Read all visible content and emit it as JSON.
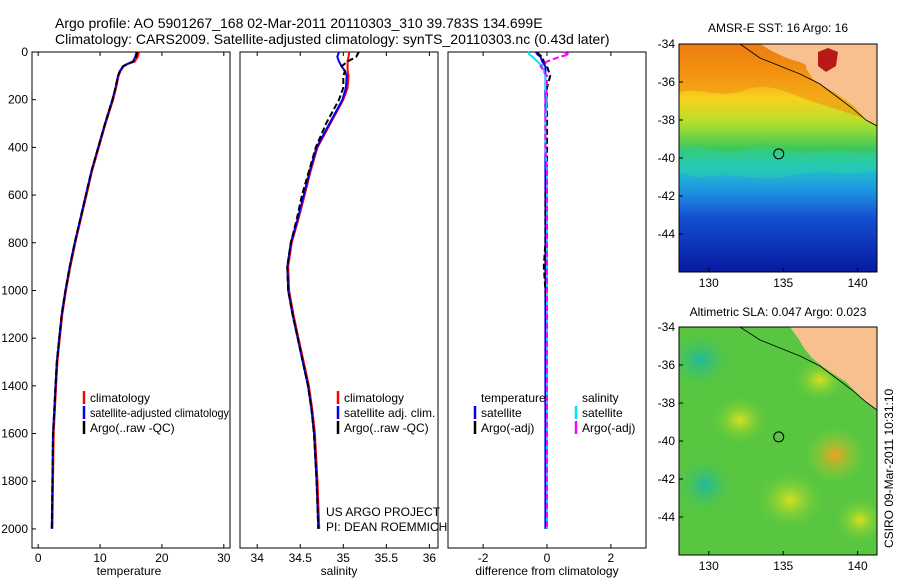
{
  "header": {
    "title_line1": "Argo profile: AO 5901267_168 02-Mar-2011 20110303_310 39.783S 134.699E",
    "title_line2": "Climatology: CARS2009. Satellite-adjusted climatology: synTS_20110303.nc (0.43d later)"
  },
  "colors": {
    "climatology": "#ff0000",
    "satellite": "#0000ff",
    "argo": "#000000",
    "salinity_satellite": "#00e5ff",
    "salinity_argo": "#ff00ff",
    "land": "#f7c08e"
  },
  "chart_data": [
    {
      "type": "line",
      "xlabel": "temperature",
      "ylabel": "",
      "xlim": [
        -1,
        31
      ],
      "ylim": [
        2080,
        0
      ],
      "xticks": [
        0,
        10,
        20,
        30
      ],
      "xtick_labels": [
        "0",
        "10",
        "20",
        "30"
      ],
      "yticks": [
        0,
        200,
        400,
        600,
        800,
        1000,
        1200,
        1400,
        1600,
        1800,
        2000
      ],
      "ytick_labels": [
        "0",
        "200",
        "400",
        "600",
        "800",
        "1000",
        "1200",
        "1400",
        "1600",
        "1800",
        "2000"
      ],
      "depth": [
        0,
        20,
        40,
        50,
        60,
        80,
        100,
        150,
        200,
        300,
        400,
        500,
        600,
        700,
        800,
        900,
        1000,
        1100,
        1200,
        1300,
        1400,
        1500,
        1600,
        1800,
        2000
      ],
      "series": [
        {
          "name": "climatology",
          "color": "#ff0000",
          "values": [
            16.3,
            16.1,
            15.6,
            14.5,
            13.8,
            13.3,
            13.0,
            12.6,
            12.1,
            10.9,
            9.8,
            8.7,
            7.8,
            6.9,
            6.0,
            5.2,
            4.5,
            3.9,
            3.5,
            3.1,
            2.9,
            2.7,
            2.5,
            2.4,
            2.3
          ]
        },
        {
          "name": "satellite-adjusted climatology",
          "color": "#0000ff",
          "values": [
            15.9,
            15.7,
            15.3,
            14.4,
            13.7,
            13.2,
            12.9,
            12.5,
            12.0,
            10.8,
            9.7,
            8.6,
            7.7,
            6.8,
            5.9,
            5.1,
            4.4,
            3.8,
            3.4,
            3.0,
            2.8,
            2.6,
            2.4,
            2.3,
            2.2
          ]
        },
        {
          "name": "Argo(..raw -QC)",
          "color": "#000000",
          "values": [
            16.0,
            15.8,
            15.4,
            14.4,
            13.7,
            13.2,
            12.9,
            12.5,
            12.0,
            10.8,
            9.7,
            8.6,
            7.7,
            6.8,
            5.9,
            5.1,
            4.4,
            3.8,
            3.4,
            3.0,
            2.8,
            2.6,
            2.4,
            2.3,
            2.2
          ]
        }
      ],
      "legend": [
        {
          "label": "climatology",
          "color": "#ff0000"
        },
        {
          "label": "satellite-adjusted climatology",
          "color": "#0000ff"
        },
        {
          "label": "Argo(..raw -QC)",
          "color": "#000000"
        }
      ]
    },
    {
      "type": "line",
      "xlabel": "salinity",
      "xlim": [
        33.8,
        36.1
      ],
      "ylim": [
        2080,
        0
      ],
      "xticks": [
        34,
        34.5,
        35,
        35.5,
        36
      ],
      "xtick_labels": [
        "34",
        "34.5",
        "35",
        "35.5",
        "36"
      ],
      "depth": [
        0,
        20,
        40,
        60,
        80,
        100,
        150,
        200,
        300,
        400,
        500,
        600,
        700,
        800,
        900,
        1000,
        1100,
        1200,
        1300,
        1400,
        1500,
        1600,
        1800,
        2000
      ],
      "series": [
        {
          "name": "climatology",
          "color": "#ff0000",
          "values": [
            35.07,
            35.06,
            35.05,
            35.05,
            35.05,
            35.06,
            35.05,
            35.0,
            34.85,
            34.7,
            34.62,
            34.55,
            34.48,
            34.4,
            34.36,
            34.37,
            34.42,
            34.48,
            34.54,
            34.6,
            34.64,
            34.67,
            34.7,
            34.72
          ]
        },
        {
          "name": "satellite adj. clim.",
          "color": "#0000ff",
          "values": [
            34.95,
            34.93,
            34.95,
            34.98,
            35.02,
            35.04,
            35.03,
            34.99,
            34.84,
            34.69,
            34.61,
            34.54,
            34.47,
            34.39,
            34.35,
            34.36,
            34.41,
            34.47,
            34.53,
            34.59,
            34.63,
            34.66,
            34.69,
            34.71
          ]
        },
        {
          "name": "Argo(..raw -QC)",
          "color": "#000000",
          "values": [
            35.18,
            35.15,
            35.05,
            34.98,
            35.02,
            35.0,
            35.0,
            34.95,
            34.8,
            34.68,
            34.6,
            34.52,
            34.46,
            34.39,
            34.35,
            34.36,
            34.41,
            34.47,
            34.53,
            34.59,
            34.63,
            34.66,
            34.69,
            34.71
          ]
        }
      ],
      "legend": [
        {
          "label": "climatology",
          "color": "#ff0000"
        },
        {
          "label": "satellite adj. clim.",
          "color": "#0000ff"
        },
        {
          "label": "Argo(..raw -QC)",
          "color": "#000000"
        }
      ],
      "credit_line1": "US ARGO PROJECT",
      "credit_line2": "PI: DEAN ROEMMICH"
    },
    {
      "type": "line",
      "xlabel": "difference from climatology",
      "xlim": [
        -3.1,
        3.1
      ],
      "ylim": [
        2080,
        0
      ],
      "xticks": [
        -2,
        0,
        2
      ],
      "xtick_labels": [
        "-2",
        "0",
        "2"
      ],
      "depth": [
        0,
        10,
        20,
        40,
        60,
        80,
        100,
        150,
        200,
        300,
        400,
        500,
        600,
        800,
        900,
        1000,
        1200,
        1400,
        1600,
        1800,
        2000
      ],
      "series": [
        {
          "name": "temperature satellite",
          "color": "#0000ff",
          "values": [
            -0.35,
            -0.3,
            -0.2,
            -0.15,
            -0.05,
            -0.05,
            -0.05,
            -0.05,
            -0.05,
            -0.05,
            -0.05,
            -0.05,
            -0.05,
            -0.05,
            -0.05,
            -0.05,
            -0.05,
            -0.05,
            -0.05,
            -0.05,
            -0.05
          ]
        },
        {
          "name": "temperature Argo(-adj)",
          "color": "#000000",
          "values": [
            -0.3,
            -0.25,
            -0.15,
            -0.1,
            0.0,
            0.05,
            0.1,
            0.0,
            0.0,
            0.0,
            0.0,
            0.0,
            -0.05,
            -0.05,
            -0.1,
            -0.05,
            0.0,
            0.0,
            0.0,
            0.0,
            0.0
          ]
        },
        {
          "name": "salinity satellite",
          "color": "#00e5ff",
          "values": [
            -0.6,
            -0.55,
            -0.45,
            -0.3,
            -0.15,
            -0.1,
            -0.05,
            -0.05,
            0.0,
            -0.05,
            -0.05,
            0.0,
            0.0,
            0.0,
            0.0,
            0.0,
            0.0,
            0.0,
            0.0,
            0.0,
            0.0
          ]
        },
        {
          "name": "salinity Argo(-adj)",
          "color": "#ff00ff",
          "values": [
            0.5,
            0.7,
            0.4,
            0.0,
            -0.2,
            -0.1,
            0.0,
            0.0,
            -0.05,
            -0.05,
            -0.05,
            0.0,
            0.0,
            0.0,
            0.0,
            0.0,
            0.0,
            0.0,
            0.0,
            0.0,
            0.0
          ]
        }
      ],
      "legend_temperature_title": "temperature",
      "legend_salinity_title": "salinity",
      "legend": [
        {
          "label": "satellite",
          "color": "#0000ff",
          "group": "temperature"
        },
        {
          "label": "Argo(-adj)",
          "color": "#000000",
          "group": "temperature"
        },
        {
          "label": "satellite",
          "color": "#00e5ff",
          "group": "salinity"
        },
        {
          "label": "Argo(-adj)",
          "color": "#ff00ff",
          "group": "salinity"
        }
      ]
    },
    {
      "type": "heatmap",
      "title": "AMSR-E SST: 16 Argo: 16",
      "xlim": [
        128,
        141.3
      ],
      "ylim": [
        -46,
        -34
      ],
      "xticks": [
        130,
        135,
        140
      ],
      "xtick_labels": [
        "130",
        "135",
        "140"
      ],
      "yticks": [
        -34,
        -36,
        -38,
        -40,
        -42,
        -44
      ],
      "ytick_labels": [
        "-34",
        "-36",
        "-38",
        "-40",
        "-42",
        "-44"
      ],
      "argo_position": [
        134.699,
        -39.783
      ]
    },
    {
      "type": "heatmap",
      "title": "Altimetric SLA: 0.047 Argo: 0.023",
      "xlim": [
        128,
        141.3
      ],
      "ylim": [
        -46,
        -34
      ],
      "xticks": [
        130,
        135,
        140
      ],
      "xtick_labels": [
        "130",
        "135",
        "140"
      ],
      "yticks": [
        -34,
        -36,
        -38,
        -40,
        -42,
        -44
      ],
      "ytick_labels": [
        "-34",
        "-36",
        "-38",
        "-40",
        "-42",
        "-44"
      ],
      "argo_position": [
        134.699,
        -39.783
      ]
    }
  ],
  "footer": {
    "stamp": "CSIRO 09-Mar-2011 10:31:10"
  }
}
